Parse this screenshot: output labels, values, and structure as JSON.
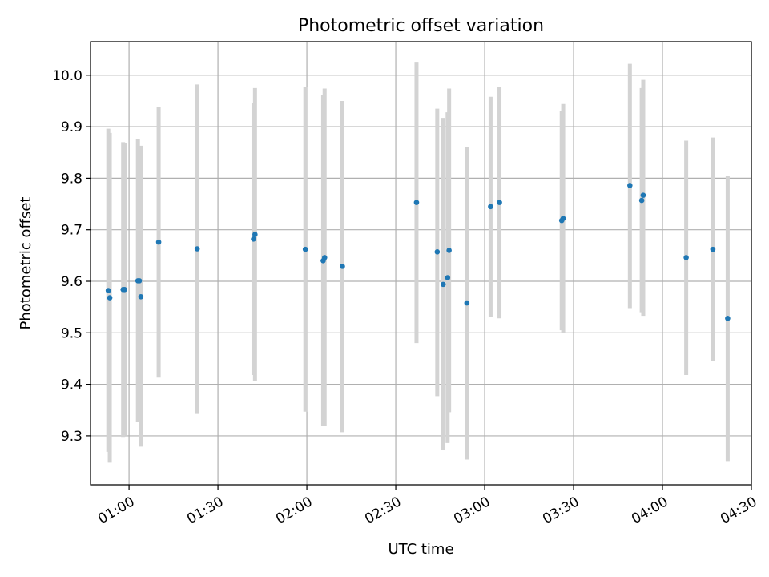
{
  "chart_data": {
    "type": "scatter",
    "title": "Photometric offset variation",
    "xlabel": "UTC time",
    "ylabel": "Photometric offset",
    "xlim": [
      "00:47",
      "04:30"
    ],
    "ylim": [
      9.205,
      10.065
    ],
    "x_ticks": [
      "01:00",
      "01:30",
      "02:00",
      "02:30",
      "03:00",
      "03:30",
      "04:00",
      "04:30"
    ],
    "y_ticks": [
      "9.3",
      "9.4",
      "9.5",
      "9.6",
      "9.7",
      "9.8",
      "9.9",
      "10.0"
    ],
    "grid": true,
    "colors": {
      "points": "#1f77b4",
      "errorbars": "#d3d3d3",
      "grid": "#b0b0b0"
    },
    "series": [
      {
        "points": [
          {
            "x": "00:53:00",
            "y": 9.582,
            "low": 9.269,
            "high": 9.896
          },
          {
            "x": "00:53:30",
            "y": 9.568,
            "low": 9.248,
            "high": 9.888
          },
          {
            "x": "00:58:00",
            "y": 9.584,
            "low": 9.298,
            "high": 9.87
          },
          {
            "x": "00:58:30",
            "y": 9.584,
            "low": 9.3,
            "high": 9.868
          },
          {
            "x": "01:03:00",
            "y": 9.601,
            "low": 9.327,
            "high": 9.876
          },
          {
            "x": "01:03:30",
            "y": 9.601,
            "low": 9.34,
            "high": 9.862
          },
          {
            "x": "01:04:00",
            "y": 9.57,
            "low": 9.279,
            "high": 9.863
          },
          {
            "x": "01:10:00",
            "y": 9.676,
            "low": 9.413,
            "high": 9.939
          },
          {
            "x": "01:23:00",
            "y": 9.663,
            "low": 9.344,
            "high": 9.982
          },
          {
            "x": "01:42:00",
            "y": 9.682,
            "low": 9.418,
            "high": 9.946
          },
          {
            "x": "01:42:30",
            "y": 9.691,
            "low": 9.407,
            "high": 9.975
          },
          {
            "x": "01:59:30",
            "y": 9.662,
            "low": 9.347,
            "high": 9.977
          },
          {
            "x": "02:05:30",
            "y": 9.64,
            "low": 9.319,
            "high": 9.961
          },
          {
            "x": "02:06:00",
            "y": 9.646,
            "low": 9.319,
            "high": 9.974
          },
          {
            "x": "02:12:00",
            "y": 9.629,
            "low": 9.307,
            "high": 9.95
          },
          {
            "x": "02:37:00",
            "y": 9.753,
            "low": 9.48,
            "high": 10.026
          },
          {
            "x": "02:44:00",
            "y": 9.657,
            "low": 9.377,
            "high": 9.935
          },
          {
            "x": "02:46:00",
            "y": 9.594,
            "low": 9.272,
            "high": 9.917
          },
          {
            "x": "02:47:30",
            "y": 9.607,
            "low": 9.286,
            "high": 9.928
          },
          {
            "x": "02:48:00",
            "y": 9.66,
            "low": 9.346,
            "high": 9.974
          },
          {
            "x": "02:54:00",
            "y": 9.558,
            "low": 9.254,
            "high": 9.861
          },
          {
            "x": "03:02:00",
            "y": 9.745,
            "low": 9.531,
            "high": 9.958
          },
          {
            "x": "03:05:00",
            "y": 9.753,
            "low": 9.528,
            "high": 9.978
          },
          {
            "x": "03:26:00",
            "y": 9.718,
            "low": 9.505,
            "high": 9.931
          },
          {
            "x": "03:26:30",
            "y": 9.722,
            "low": 9.5,
            "high": 9.944
          },
          {
            "x": "03:49:00",
            "y": 9.786,
            "low": 9.548,
            "high": 10.022
          },
          {
            "x": "03:53:00",
            "y": 9.757,
            "low": 9.54,
            "high": 9.975
          },
          {
            "x": "03:53:30",
            "y": 9.767,
            "low": 9.533,
            "high": 9.991
          },
          {
            "x": "04:08:00",
            "y": 9.646,
            "low": 9.418,
            "high": 9.873
          },
          {
            "x": "04:17:00",
            "y": 9.662,
            "low": 9.445,
            "high": 9.879
          },
          {
            "x": "04:22:00",
            "y": 9.528,
            "low": 9.251,
            "high": 9.805
          }
        ]
      }
    ]
  }
}
